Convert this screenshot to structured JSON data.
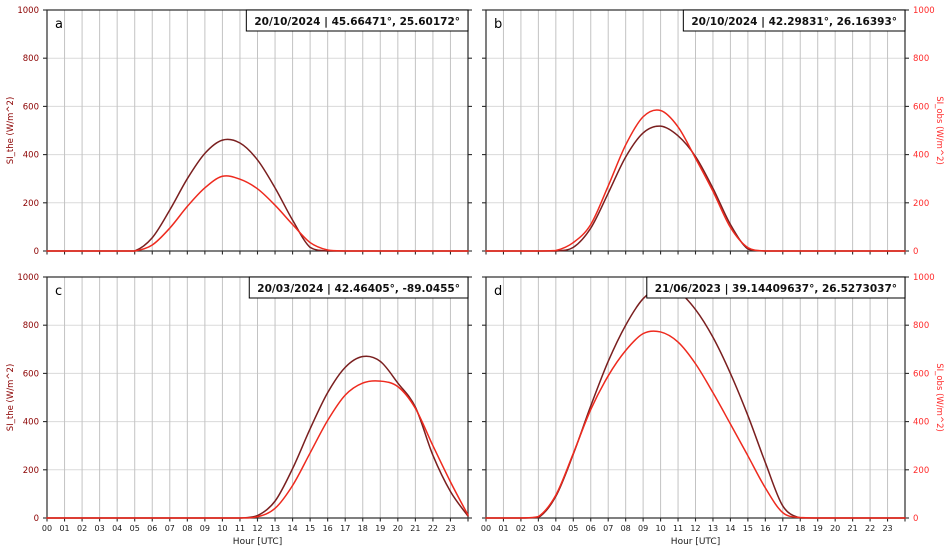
{
  "figure": {
    "x_axis": {
      "label": "Hour [UTC]",
      "tick_labels": [
        "00",
        "01",
        "02",
        "03",
        "04",
        "05",
        "06",
        "07",
        "08",
        "09",
        "10",
        "11",
        "12",
        "13",
        "14",
        "15",
        "16",
        "17",
        "18",
        "19",
        "20",
        "21",
        "22",
        "23"
      ],
      "min": 0,
      "max": 24
    },
    "y_axis": {
      "tick_labels": [
        "0",
        "200",
        "400",
        "600",
        "800",
        "1000"
      ],
      "min": 0,
      "max": 1000,
      "tick_step": 200
    },
    "colors": {
      "si_the_curve": "#7a1f1f",
      "si_obs_curve": "#ee2a1e",
      "left_axis_text": "#8b0000",
      "right_axis_text": "#ff2a2a",
      "grid_vertical": "#c3c3c3",
      "grid_horizontal": "#dadada",
      "spine": "#2a2a2a",
      "tick_text": "#1a1a1a",
      "annotation_text": "#111111",
      "annotation_border": "#000000",
      "annotation_bg": "#ffffff"
    }
  },
  "chart_data": [
    {
      "id": "a",
      "type": "line",
      "panel_letter": "a",
      "annotation": "20/10/2024 | 45.66471°, 25.60172°",
      "ylabel": "SI_the (W/m^2)",
      "ylabel_side": "left",
      "x_step_hours": 1,
      "ylim": [
        0,
        1000
      ],
      "series": [
        {
          "name": "SI_the",
          "color_key": "si_the_curve",
          "values": [
            0,
            0,
            0,
            0,
            0,
            0,
            55,
            170,
            300,
            405,
            460,
            448,
            378,
            262,
            128,
            15,
            0,
            0,
            0,
            0,
            0,
            0,
            0,
            0,
            0
          ]
        },
        {
          "name": "SI_obs",
          "color_key": "si_obs_curve",
          "values": [
            0,
            0,
            0,
            0,
            0,
            0,
            25,
            95,
            185,
            262,
            310,
            298,
            258,
            190,
            110,
            35,
            4,
            0,
            0,
            0,
            0,
            0,
            0,
            0,
            0
          ]
        }
      ]
    },
    {
      "id": "b",
      "type": "line",
      "panel_letter": "b",
      "annotation": "20/10/2024 | 42.29831°, 26.16393°",
      "ylabel": "SI_obs (W/m^2)",
      "ylabel_side": "right",
      "x_step_hours": 1,
      "ylim": [
        0,
        1000
      ],
      "series": [
        {
          "name": "SI_the",
          "color_key": "si_the_curve",
          "values": [
            0,
            0,
            0,
            0,
            0,
            15,
            95,
            240,
            390,
            490,
            518,
            478,
            392,
            260,
            110,
            8,
            0,
            0,
            0,
            0,
            0,
            0,
            0,
            0,
            0
          ]
        },
        {
          "name": "SI_obs",
          "color_key": "si_obs_curve",
          "values": [
            0,
            0,
            0,
            0,
            2,
            35,
            110,
            270,
            440,
            557,
            583,
            515,
            385,
            248,
            98,
            14,
            0,
            0,
            0,
            0,
            0,
            0,
            0,
            0,
            0
          ]
        }
      ]
    },
    {
      "id": "c",
      "type": "line",
      "panel_letter": "c",
      "annotation": "20/03/2024 | 42.46405°, -89.0455°",
      "ylabel": "SI_the (W/m^2)",
      "ylabel_side": "left",
      "x_step_hours": 1,
      "ylim": [
        0,
        1000
      ],
      "series": [
        {
          "name": "SI_the",
          "color_key": "si_the_curve",
          "values": [
            0,
            0,
            0,
            0,
            0,
            0,
            0,
            0,
            0,
            0,
            0,
            0,
            10,
            70,
            205,
            370,
            520,
            625,
            670,
            650,
            560,
            460,
            260,
            110,
            8
          ]
        },
        {
          "name": "SI_obs",
          "color_key": "si_obs_curve",
          "values": [
            0,
            0,
            0,
            0,
            0,
            0,
            0,
            0,
            0,
            0,
            0,
            0,
            5,
            40,
            135,
            270,
            405,
            510,
            560,
            568,
            545,
            455,
            300,
            150,
            12
          ]
        }
      ]
    },
    {
      "id": "d",
      "type": "line",
      "panel_letter": "d",
      "annotation": "21/06/2023 | 39.14409637°, 26.5273037°",
      "ylabel": "SI_obs (W/m^2)",
      "ylabel_side": "right",
      "x_step_hours": 1,
      "ylim": [
        0,
        1000
      ],
      "series": [
        {
          "name": "SI_the",
          "color_key": "si_the_curve",
          "values": [
            0,
            0,
            0,
            2,
            90,
            265,
            465,
            650,
            800,
            910,
            955,
            940,
            865,
            750,
            600,
            425,
            230,
            50,
            0,
            0,
            0,
            0,
            0,
            0,
            0
          ]
        },
        {
          "name": "SI_obs",
          "color_key": "si_obs_curve",
          "values": [
            0,
            0,
            0,
            6,
            95,
            268,
            450,
            590,
            695,
            765,
            772,
            730,
            640,
            520,
            390,
            258,
            125,
            22,
            2,
            0,
            0,
            0,
            0,
            0,
            0
          ]
        }
      ]
    }
  ]
}
